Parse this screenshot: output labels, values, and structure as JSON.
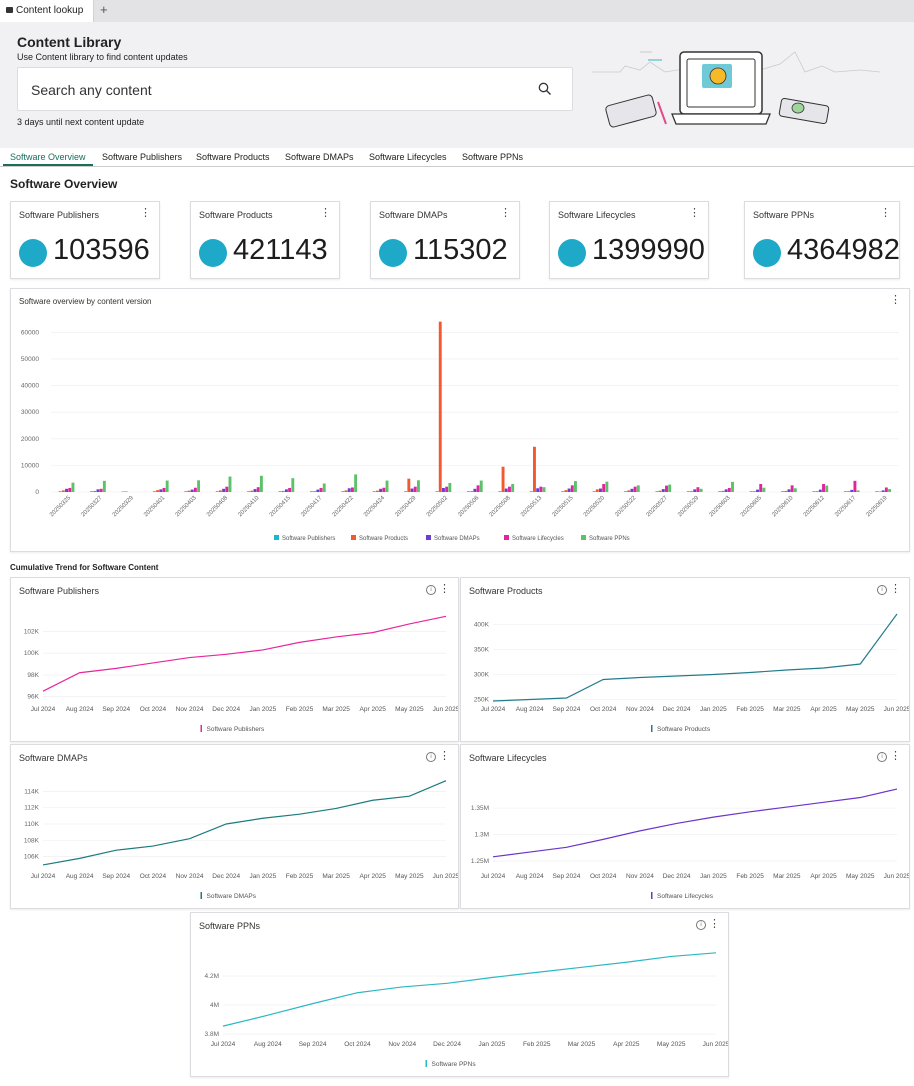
{
  "browser": {
    "tab_title": "Content lookup",
    "new_tab": "+"
  },
  "header": {
    "title": "Content Library",
    "subtitle": "Use Content library to find content updates",
    "search_placeholder": "Search any content",
    "update_note": "3 days until next content update"
  },
  "tabs": [
    "Software Overview",
    "Software Publishers",
    "Software Products",
    "Software DMAPs",
    "Software Lifecycles",
    "Software PPNs"
  ],
  "section_title": "Software Overview",
  "kpis": [
    {
      "label": "Software Publishers",
      "value": "103596"
    },
    {
      "label": "Software Products",
      "value": "421143"
    },
    {
      "label": "Software DMAPs",
      "value": "115302"
    },
    {
      "label": "Software Lifecycles",
      "value": "1399990"
    },
    {
      "label": "Software PPNs",
      "value": "4364982"
    }
  ],
  "colors": {
    "publishers": "#1ab8cf",
    "products": "#f4582f",
    "dmaps": "#6a3fd4",
    "lifecycles": "#e0249e",
    "ppns": "#5cc26a",
    "trend_publishers": "#e8269c",
    "trend_products": "#237c8c",
    "trend_dmaps": "#1b7b7e",
    "trend_lifecycles": "#6a35c8",
    "trend_ppns": "#2bb8c4"
  },
  "chart_data": [
    {
      "type": "bar",
      "title": "Software overview by content version",
      "categories": [
        "20250325",
        "20250327",
        "20250329",
        "20250401",
        "20250403",
        "20250408",
        "20250410",
        "20250415",
        "20250417",
        "20250422",
        "20250424",
        "20250429",
        "20250502",
        "20250506",
        "20250508",
        "20250513",
        "20250515",
        "20250520",
        "20250522",
        "20250527",
        "20250529",
        "20250603",
        "20250605",
        "20250610",
        "20250612",
        "20250617",
        "20250619"
      ],
      "ylim": [
        0,
        65000
      ],
      "yticks": [
        0,
        10000,
        20000,
        30000,
        40000,
        50000,
        60000
      ],
      "grid": true,
      "legend_position": "bottom",
      "series": [
        {
          "name": "Software Publishers",
          "values": [
            300,
            300,
            200,
            300,
            300,
            300,
            300,
            300,
            300,
            300,
            300,
            300,
            300,
            300,
            300,
            300,
            300,
            300,
            300,
            300,
            300,
            300,
            300,
            300,
            300,
            300,
            300
          ]
        },
        {
          "name": "Software Products",
          "values": [
            600,
            400,
            200,
            700,
            500,
            600,
            500,
            400,
            300,
            600,
            500,
            5000,
            64000,
            300,
            9500,
            17000,
            700,
            1000,
            600,
            500,
            300,
            400,
            300,
            400,
            300,
            300,
            200
          ]
        },
        {
          "name": "Software DMAPs",
          "values": [
            1200,
            1000,
            0,
            1000,
            900,
            1200,
            1100,
            1000,
            900,
            1400,
            1200,
            1300,
            1500,
            1200,
            1300,
            1400,
            1300,
            1300,
            1200,
            1100,
            1000,
            1000,
            900,
            1000,
            900,
            800,
            600
          ]
        },
        {
          "name": "Software Lifecycles",
          "values": [
            1500,
            1200,
            0,
            1500,
            1600,
            2000,
            1800,
            1500,
            1500,
            1700,
            1600,
            2000,
            2000,
            2500,
            2000,
            2000,
            2500,
            3000,
            2000,
            2400,
            1800,
            1500,
            3000,
            2500,
            3000,
            4200,
            1700
          ]
        },
        {
          "name": "Software PPNs",
          "values": [
            3500,
            4200,
            0,
            4300,
            4400,
            5800,
            6100,
            5200,
            3200,
            6600,
            4300,
            4400,
            3400,
            4300,
            3000,
            1800,
            4100,
            3900,
            2500,
            2800,
            1200,
            3800,
            1600,
            1400,
            2400,
            600,
            1100
          ]
        }
      ]
    },
    {
      "type": "line",
      "title": "Software Publishers",
      "x": [
        "Jul 2024",
        "Aug 2024",
        "Sep 2024",
        "Oct 2024",
        "Nov 2024",
        "Dec 2024",
        "Jan 2025",
        "Feb 2025",
        "Mar 2025",
        "Apr 2025",
        "May 2025",
        "Jun 2025"
      ],
      "yticks": [
        {
          "v": 96000,
          "t": "96K"
        },
        {
          "v": 98000,
          "t": "98K"
        },
        {
          "v": 100000,
          "t": "100K"
        },
        {
          "v": 102000,
          "t": "102K"
        }
      ],
      "ylim": [
        95500,
        103800
      ],
      "series": [
        {
          "name": "Software Publishers",
          "values": [
            96500,
            98200,
            98600,
            99100,
            99600,
            99900,
            100300,
            101000,
            101500,
            101900,
            102700,
            103400
          ]
        }
      ]
    },
    {
      "type": "line",
      "title": "Software Products",
      "x": [
        "Jul 2024",
        "Aug 2024",
        "Sep 2024",
        "Oct 2024",
        "Nov 2024",
        "Dec 2024",
        "Jan 2025",
        "Feb 2025",
        "Mar 2025",
        "Apr 2025",
        "May 2025",
        "Jun 2025"
      ],
      "yticks": [
        {
          "v": 250000,
          "t": "250K"
        },
        {
          "v": 300000,
          "t": "300K"
        },
        {
          "v": 350000,
          "t": "350K"
        },
        {
          "v": 400000,
          "t": "400K"
        }
      ],
      "ylim": [
        245000,
        425000
      ],
      "series": [
        {
          "name": "Software Products",
          "values": [
            247000,
            250000,
            253000,
            290000,
            294000,
            297000,
            300000,
            304000,
            309000,
            313000,
            321000,
            421000
          ]
        }
      ]
    },
    {
      "type": "line",
      "title": "Software DMAPs",
      "x": [
        "Jul 2024",
        "Aug 2024",
        "Sep 2024",
        "Oct 2024",
        "Nov 2024",
        "Dec 2024",
        "Jan 2025",
        "Feb 2025",
        "Mar 2025",
        "Apr 2025",
        "May 2025",
        "Jun 2025"
      ],
      "yticks": [
        {
          "v": 106000,
          "t": "106K"
        },
        {
          "v": 108000,
          "t": "108K"
        },
        {
          "v": 110000,
          "t": "110K"
        },
        {
          "v": 112000,
          "t": "112K"
        },
        {
          "v": 114000,
          "t": "114K"
        }
      ],
      "ylim": [
        104500,
        115500
      ],
      "series": [
        {
          "name": "Software DMAPs",
          "values": [
            105000,
            105800,
            106800,
            107300,
            108200,
            110000,
            110700,
            111200,
            111900,
            112900,
            113400,
            115300
          ]
        }
      ]
    },
    {
      "type": "line",
      "title": "Software Lifecycles",
      "x": [
        "Jul 2024",
        "Aug 2024",
        "Sep 2024",
        "Oct 2024",
        "Nov 2024",
        "Dec 2024",
        "Jan 2025",
        "Feb 2025",
        "Mar 2025",
        "Apr 2025",
        "May 2025",
        "Jun 2025"
      ],
      "yticks": [
        {
          "v": 1250000,
          "t": "1.25M"
        },
        {
          "v": 1300000,
          "t": "1.3M"
        },
        {
          "v": 1350000,
          "t": "1.35M"
        }
      ],
      "ylim": [
        1235000,
        1405000
      ],
      "series": [
        {
          "name": "Software Lifecycles",
          "values": [
            1258000,
            1267000,
            1276000,
            1291000,
            1307000,
            1321000,
            1333000,
            1343000,
            1352000,
            1361000,
            1370000,
            1386000
          ]
        }
      ]
    },
    {
      "type": "line",
      "title": "Software PPNs",
      "x": [
        "Jul 2024",
        "Aug 2024",
        "Sep 2024",
        "Oct 2024",
        "Nov 2024",
        "Dec 2024",
        "Jan 2025",
        "Feb 2025",
        "Mar 2025",
        "Apr 2025",
        "May 2025",
        "Jun 2025"
      ],
      "yticks": [
        {
          "v": 3800000,
          "t": "3.8M"
        },
        {
          "v": 4000000,
          "t": "4M"
        },
        {
          "v": 4200000,
          "t": "4.2M"
        }
      ],
      "ylim": [
        3780000,
        4400000
      ],
      "series": [
        {
          "name": "Software PPNs",
          "values": [
            3855000,
            3930000,
            4010000,
            4085000,
            4125000,
            4150000,
            4190000,
            4225000,
            4260000,
            4295000,
            4335000,
            4360000
          ]
        }
      ]
    }
  ],
  "cumulative_title": "Cumulative Trend for Software Content"
}
